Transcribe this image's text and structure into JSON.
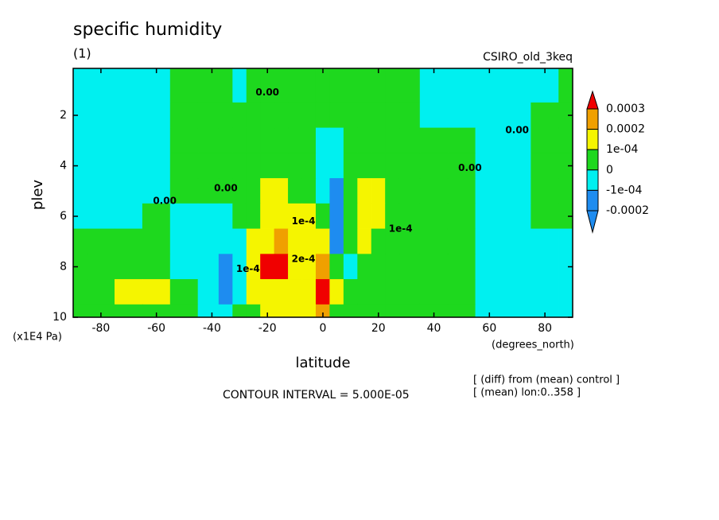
{
  "chart_data": {
    "type": "contour",
    "title": "specific humidity",
    "subtitle": "(1)",
    "dataset": "CSIRO_old_3keq",
    "x_label": "latitude",
    "x_unit": "(degrees_north)",
    "y_label": "plev",
    "y_unit": "(x1E4 Pa)",
    "contour_interval_text": "CONTOUR INTERVAL = 5.000E-05",
    "notes": [
      "[ (diff) from (mean) control ]",
      "[ (mean) lon:0..358 ]"
    ],
    "xlim": [
      -90,
      90
    ],
    "xticks": [
      -80,
      -60,
      -40,
      -20,
      0,
      20,
      40,
      60,
      80
    ],
    "ylim": [
      10,
      0.14
    ],
    "yticks": [
      2,
      4,
      6,
      8,
      10
    ],
    "x": [
      -90,
      -80,
      -70,
      -60,
      -50,
      -40,
      -35,
      -30,
      -25,
      -20,
      -15,
      -10,
      -5,
      0,
      5,
      10,
      15,
      20,
      25,
      30,
      40,
      50,
      60,
      70,
      80,
      90
    ],
    "y": [
      1,
      2,
      3,
      4,
      5,
      6,
      7,
      8,
      9,
      10
    ],
    "z": [
      [
        -3e-05,
        -3e-05,
        -3e-05,
        -2e-05,
        2e-05,
        2e-05,
        2e-05,
        -2e-05,
        2e-05,
        2e-05,
        2e-05,
        2e-05,
        2e-05,
        2e-05,
        2e-05,
        2e-05,
        2e-05,
        2e-05,
        2e-05,
        2e-05,
        -2e-05,
        -2e-05,
        -2e-05,
        -2e-05,
        -1e-05,
        2e-05
      ],
      [
        -3e-05,
        -3e-05,
        -3e-05,
        -2e-05,
        2e-05,
        2e-05,
        2e-05,
        3e-05,
        3e-05,
        3e-05,
        3e-05,
        3e-05,
        3e-05,
        2e-05,
        2e-05,
        3e-05,
        3e-05,
        3e-05,
        2e-05,
        2e-05,
        -2e-05,
        -2e-05,
        -2e-05,
        -2e-05,
        2e-05,
        2e-05
      ],
      [
        -3e-05,
        -3e-05,
        -2e-05,
        -2e-05,
        1e-05,
        3e-05,
        3e-05,
        3e-05,
        3e-05,
        3e-05,
        3e-05,
        5e-05,
        6e-05,
        -3e-05,
        -3e-05,
        5e-05,
        5e-05,
        3e-05,
        2e-05,
        2e-05,
        1e-05,
        1e-05,
        -2e-05,
        -1e-05,
        2e-05,
        2e-05
      ],
      [
        -3e-05,
        -3e-05,
        -2e-05,
        -1e-05,
        1e-05,
        3e-05,
        3e-05,
        5e-05,
        6e-05,
        6e-05,
        6e-05,
        6e-05,
        6e-05,
        -5e-05,
        -8e-05,
        7e-05,
        7e-05,
        7e-05,
        5e-05,
        3e-05,
        2e-05,
        1e-05,
        -2e-05,
        -2e-05,
        2e-05,
        2e-05
      ],
      [
        -3e-05,
        -3e-05,
        -2e-05,
        -1e-05,
        1e-05,
        2e-05,
        3e-05,
        5e-05,
        7e-05,
        0.00011,
        0.00012,
        6e-05,
        8e-05,
        -5e-05,
        -0.00015,
        8e-05,
        0.00013,
        0.00012,
        7e-05,
        4e-05,
        2e-05,
        1e-05,
        -2e-05,
        -2e-05,
        2e-05,
        2e-05
      ],
      [
        -3e-05,
        -2e-05,
        -1e-05,
        1e-05,
        -2e-05,
        -3e-05,
        -2e-05,
        3e-05,
        8e-05,
        0.00013,
        0.00013,
        0.0001,
        0.00011,
        3e-05,
        -0.00013,
        9e-05,
        0.00014,
        0.00013,
        8e-05,
        4e-05,
        2e-05,
        1e-05,
        -1e-05,
        -2e-05,
        1e-05,
        2e-05
      ],
      [
        1e-05,
        2e-05,
        2e-05,
        2e-05,
        -3e-05,
        -7e-05,
        -9e-05,
        -5e-05,
        0.00012,
        0.00016,
        0.00022,
        0.00013,
        0.00015,
        0.00015,
        -0.00011,
        3e-05,
        0.0001,
        7e-05,
        5e-05,
        3e-05,
        2e-05,
        1e-05,
        -1e-05,
        -2e-05,
        -2e-05,
        -2e-05
      ],
      [
        2e-05,
        2e-05,
        3e-05,
        2e-05,
        -2e-05,
        -0.0001,
        -0.00012,
        -8e-05,
        0.00013,
        0.00031,
        0.0003,
        0.00015,
        0.00018,
        0.00024,
        5e-05,
        -1e-05,
        3e-05,
        4e-05,
        3e-05,
        3e-05,
        2e-05,
        1e-05,
        -1e-05,
        -2e-05,
        -2e-05,
        -2e-05
      ],
      [
        3e-05,
        8e-05,
        0.00012,
        0.00011,
        2e-05,
        -8e-05,
        -0.00012,
        -4e-05,
        0.0001,
        0.00015,
        0.00016,
        0.00013,
        0.00012,
        0.00032,
        0.0001,
        3e-05,
        2e-05,
        3e-05,
        3e-05,
        2e-05,
        2e-05,
        1e-05,
        -1e-05,
        -2e-05,
        -3e-05,
        -2e-05
      ],
      [
        3e-05,
        5e-05,
        4e-05,
        3e-05,
        2e-05,
        -2e-05,
        -3e-05,
        0,
        5e-05,
        0.0001,
        0.00012,
        0.0001,
        0.00013,
        0.0002,
        8e-05,
        3e-05,
        2e-05,
        2e-05,
        2e-05,
        2e-05,
        1e-05,
        1e-05,
        -1e-05,
        -2e-05,
        -2e-05,
        -2e-05
      ]
    ],
    "levels": [
      0.0003,
      0.0002,
      {
        "value": 0.0001,
        "label": "1e-04"
      },
      0,
      {
        "value": -0.0001,
        "label": "-1e-04"
      },
      -0.0002
    ],
    "level_colors": [
      "#f00000",
      "#f0a000",
      "#f5f500",
      "#1ed81e",
      "#00f0f0",
      "#1e8cf0",
      "#1e8cf0"
    ],
    "contour_labels": [
      {
        "text": "0.00",
        "x": -20,
        "y": 1.1
      },
      {
        "text": "0.00",
        "x": -57,
        "y": 5.4
      },
      {
        "text": "0.00",
        "x": -35,
        "y": 4.9
      },
      {
        "text": "0.00",
        "x": 53,
        "y": 4.1
      },
      {
        "text": "0.00",
        "x": 70,
        "y": 2.6
      },
      {
        "text": "1e-4",
        "x": -27,
        "y": 8.1
      },
      {
        "text": "1e-4",
        "x": -7,
        "y": 6.2
      },
      {
        "text": "2e-4",
        "x": -7,
        "y": 7.7
      },
      {
        "text": "1e-4",
        "x": 28,
        "y": 6.5
      }
    ]
  }
}
